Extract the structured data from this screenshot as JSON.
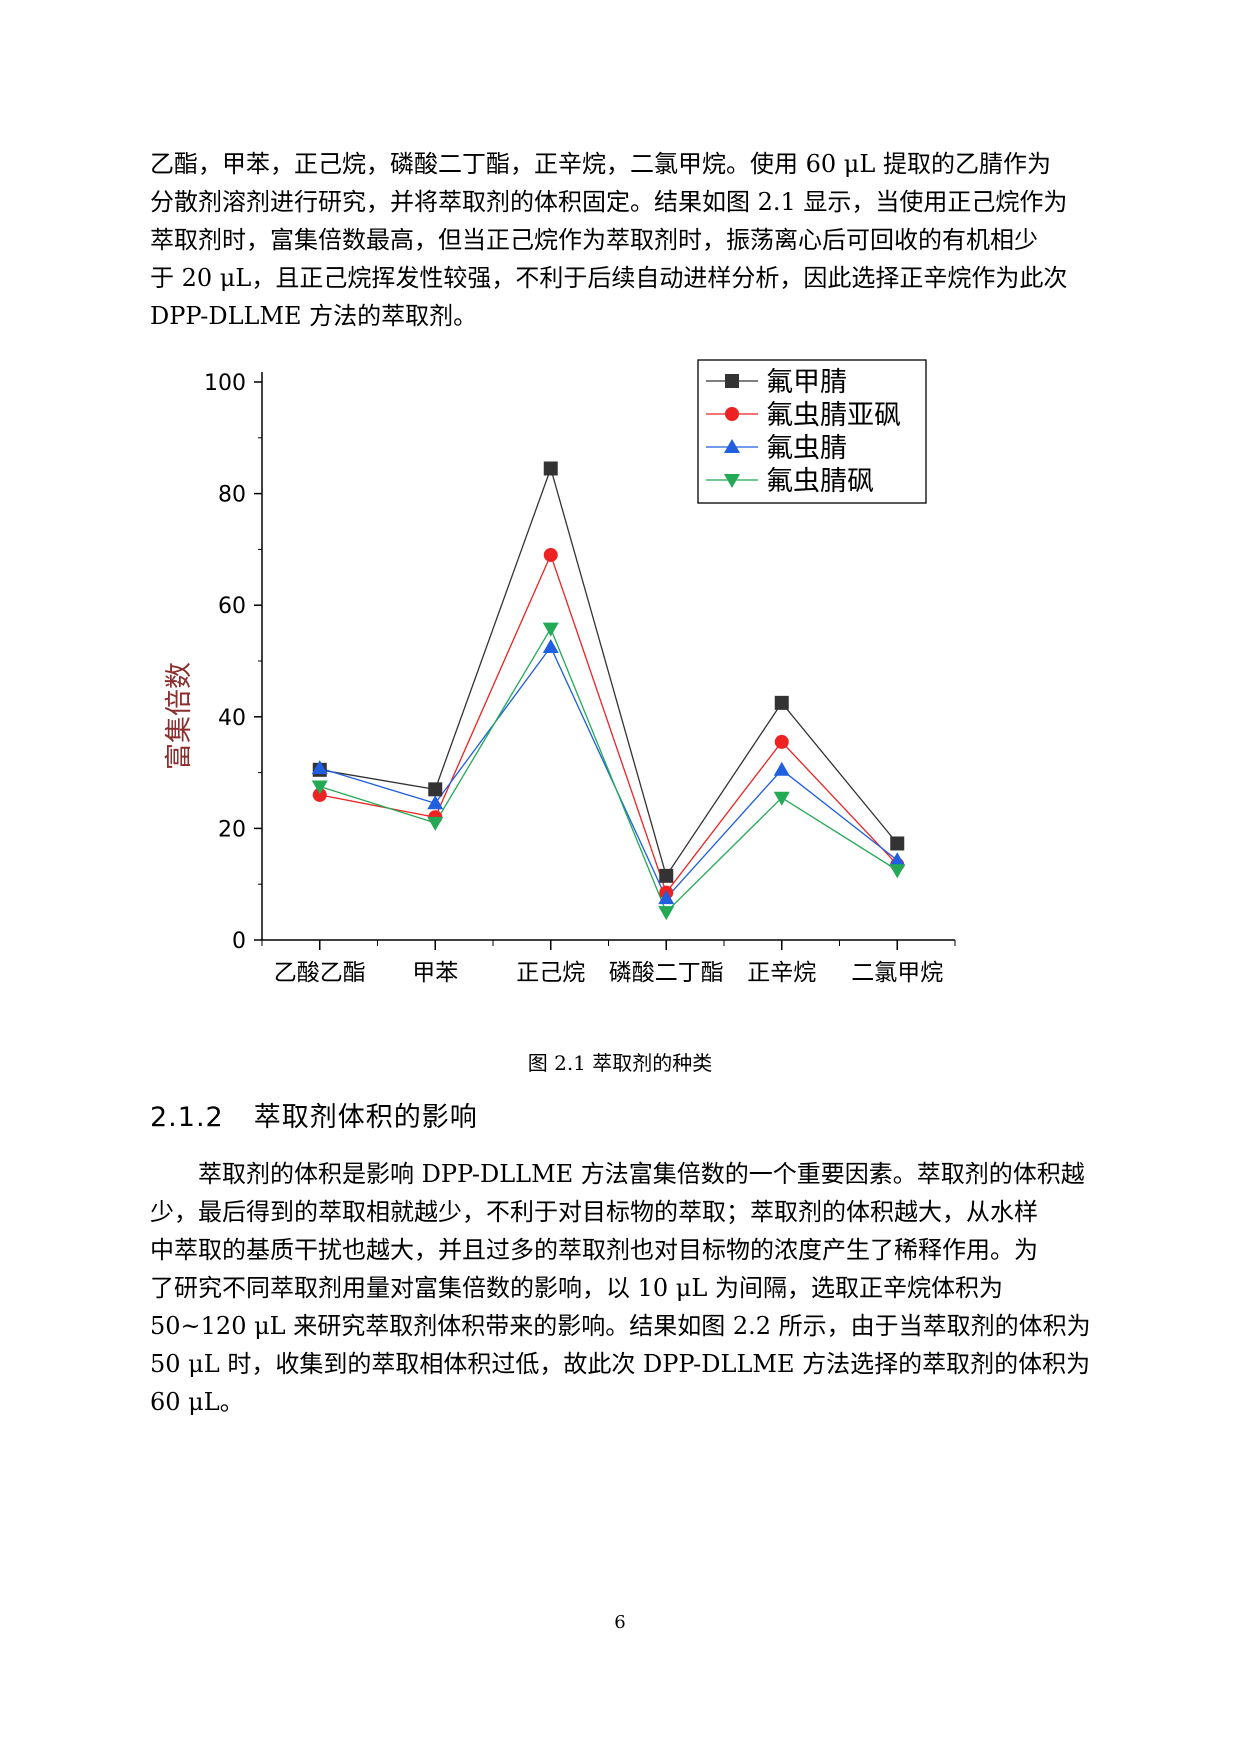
{
  "paragraph1": [
    "乙酯，甲苯，正己烷，磷酸二丁酯，正辛烷，二氯甲烷。使用 60 μL 提取的乙腈作为",
    "分散剂溶剂进行研究，并将萃取剂的体积固定。结果如图 2.1 显示，当使用正己烷作为",
    "萃取剂时，富集倍数最高，但当正己烷作为萃取剂时，振荡离心后可回收的有机相少",
    "于 20 μL，且正己烷挥发性较强，不利于后续自动进样分析，因此选择正辛烷作为此次",
    "DPP-DLLME 方法的萃取剂。"
  ],
  "figure_caption": "图 2.1 萃取剂的种类",
  "section": {
    "number": "2.1.2",
    "title": "萃取剂体积的影响"
  },
  "paragraph2": [
    "萃取剂的体积是影响 DPP-DLLME 方法富集倍数的一个重要因素。萃取剂的体积越",
    "少，最后得到的萃取相就越少，不利于对目标物的萃取；萃取剂的体积越大，从水样",
    "中萃取的基质干扰也越大，并且过多的萃取剂也对目标物的浓度产生了稀释作用。为",
    "了研究不同萃取剂用量对富集倍数的影响，以 10 μL 为间隔，选取正辛烷体积为",
    "50~120 μL 来研究萃取剂体积带来的影响。结果如图 2.2 所示，由于当萃取剂的体积为",
    "50 μL 时，收集到的萃取相体积过低，故此次 DPP-DLLME 方法选择的萃取剂的体积为",
    "60 μL。"
  ],
  "page_number": "6",
  "chart_data": {
    "type": "line",
    "title": "",
    "xlabel": "",
    "ylabel": "富集倍数",
    "ylim": [
      0,
      100
    ],
    "yticks": [
      0,
      20,
      40,
      60,
      80,
      100
    ],
    "categories": [
      "乙酸乙酯",
      "甲苯",
      "正己烷",
      "磷酸二丁酯",
      "正辛烷",
      "二氯甲烷"
    ],
    "legend_position": "top-right",
    "grid": false,
    "series": [
      {
        "name": "氟甲腈",
        "color": "#333333",
        "marker": "square",
        "values": [
          30.5,
          27,
          84.5,
          11.5,
          42.5,
          17.3
        ]
      },
      {
        "name": "氟虫腈亚砜",
        "color": "#ee2222",
        "marker": "circle",
        "values": [
          26,
          22,
          69,
          8.5,
          35.5,
          13.5
        ]
      },
      {
        "name": "氟虫腈",
        "color": "#1f5fe0",
        "marker": "triangle-up",
        "values": [
          30.8,
          24.5,
          52.5,
          7.5,
          30.5,
          14.3
        ]
      },
      {
        "name": "氟虫腈砜",
        "color": "#22aa55",
        "marker": "triangle-down",
        "values": [
          27.5,
          21,
          55.8,
          5,
          25.5,
          12.5
        ]
      }
    ]
  }
}
